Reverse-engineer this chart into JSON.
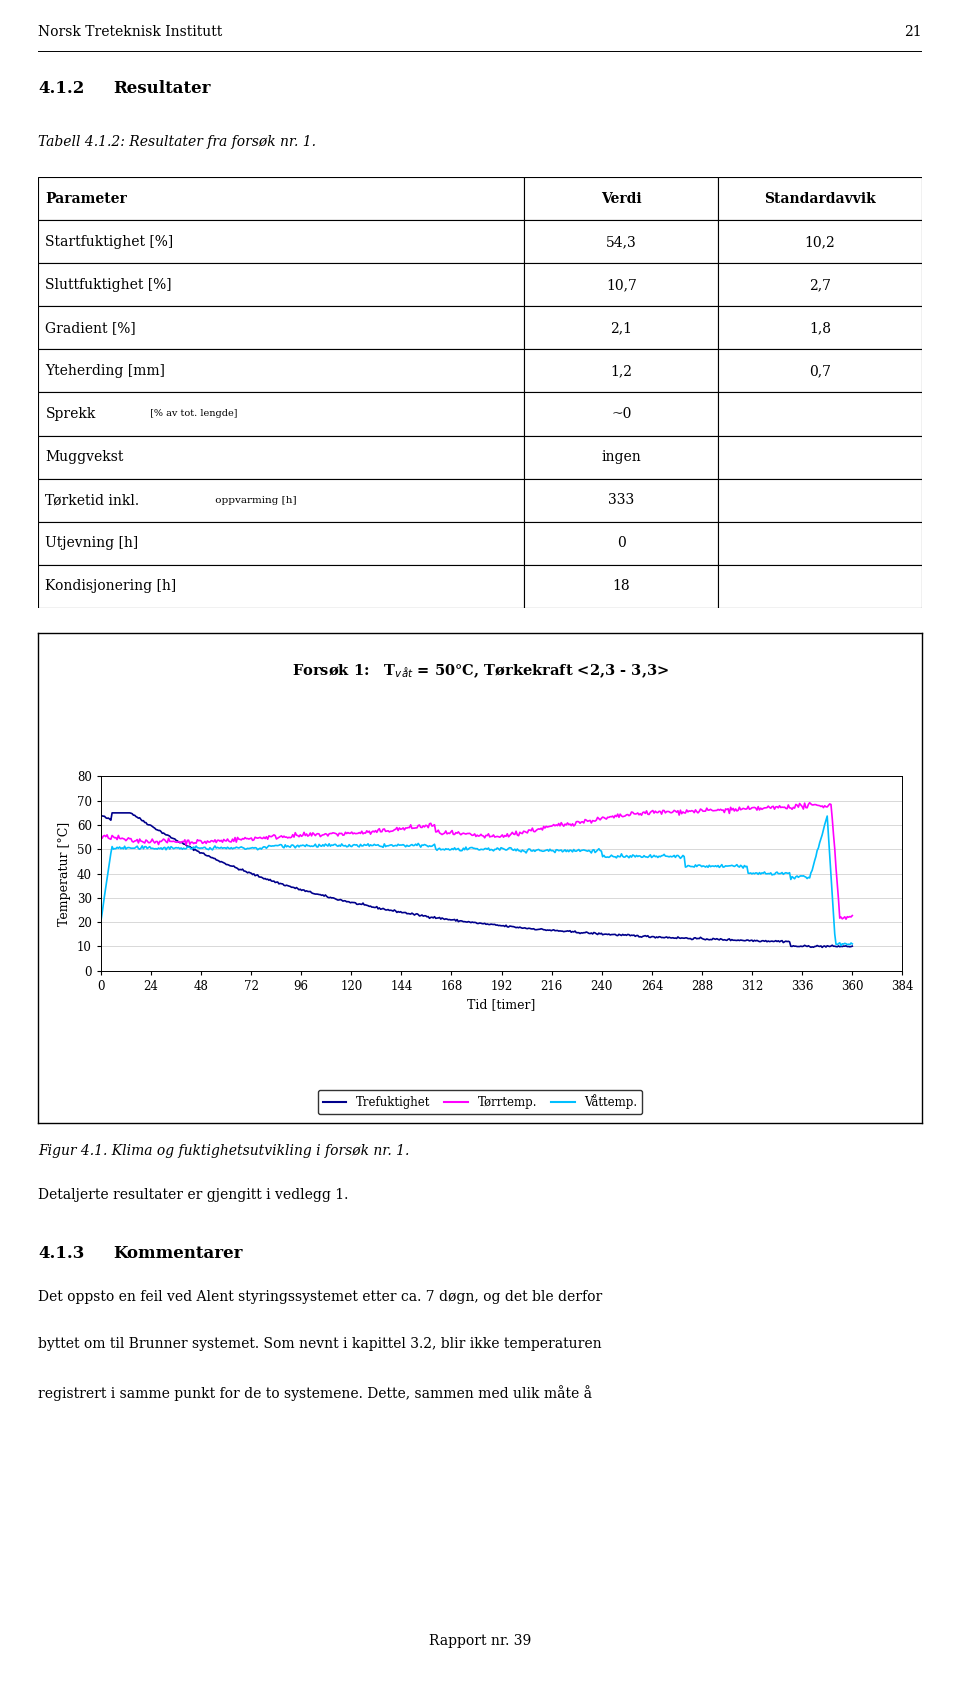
{
  "xlabel": "Tid [timer]",
  "ylabel": "Temperatur [°C]",
  "ylim": [
    0,
    80
  ],
  "xlim": [
    0,
    384
  ],
  "yticks": [
    0,
    10,
    20,
    30,
    40,
    50,
    60,
    70,
    80
  ],
  "xticks": [
    0,
    24,
    48,
    72,
    96,
    120,
    144,
    168,
    192,
    216,
    240,
    264,
    288,
    312,
    336,
    360,
    384
  ],
  "line_colors": [
    "#00008B",
    "#FF00FF",
    "#00BFFF"
  ],
  "legend_labels": [
    "Trefuktighet",
    "Tørrtemp.",
    "Våttemp."
  ],
  "page_header": "Norsk Treteknisk Institutt",
  "page_number": "21",
  "section_heading": "4.1.2",
  "section_heading2": "Resultater",
  "table_caption": "Tabell 4.1.2: Resultater fra forsøk nr. 1.",
  "table_rows": [
    [
      "Parameter",
      "Verdi",
      "Standardavvik"
    ],
    [
      "Startfuktighet [%]",
      "54,3",
      "10,2"
    ],
    [
      "Sluttfuktighet [%]",
      "10,7",
      "2,7"
    ],
    [
      "Gradient [%]",
      "2,1",
      "1,8"
    ],
    [
      "Yteherding [mm]",
      "1,2",
      "0,7"
    ],
    [
      "Sprekk_special",
      "~0",
      ""
    ],
    [
      "Muggvekst",
      "ingen",
      ""
    ],
    [
      "Tørketid_special",
      "333",
      ""
    ],
    [
      "Utjevning [h]",
      "0",
      ""
    ],
    [
      "Kondisjonering [h]",
      "18",
      ""
    ]
  ],
  "chart_title": "Forsøk 1:   T$_{våt}$ = 50°C, Tørkekraft <2,3 - 3,3>",
  "fig_caption": "Figur 4.1. Klima og fuktighetsutvikling i forsøk nr. 1.",
  "section2_text": "Detaljerte resultater er gjengitt i vedlegg 1.",
  "section3_heading": "4.1.3",
  "section3_heading2": "Kommentarer",
  "section3_text1": "Det oppsto en feil ved Alent styringssystemet etter ca. 7 døgn, og det ble derfor",
  "section3_text2": "byttet om til Brunner systemet. Som nevnt i kapittel 3.2, blir ikke temperaturen",
  "section3_text3": "registrert i samme punkt for de to systemene. Dette, sammen med ulik måte å",
  "footer": "Rapport nr. 39"
}
